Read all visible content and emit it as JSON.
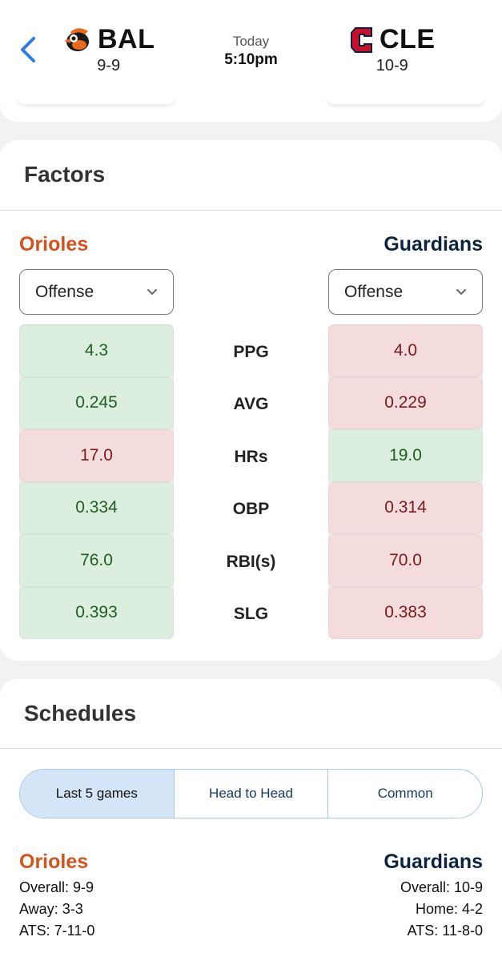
{
  "header": {
    "away": {
      "abbr": "BAL",
      "record": "9-9",
      "logo": "orioles-bird-logo",
      "color": "#d4521c"
    },
    "home": {
      "abbr": "CLE",
      "record": "10-9",
      "logo": "guardians-c-logo",
      "color": "#c8102e"
    },
    "day": "Today",
    "time": "5:10pm"
  },
  "factors": {
    "title": "Factors",
    "left_team": "Orioles",
    "right_team": "Guardians",
    "left_select": "Offense",
    "right_select": "Offense",
    "rows": [
      {
        "label": "PPG",
        "left": "4.3",
        "right": "4.0",
        "left_good": true
      },
      {
        "label": "AVG",
        "left": "0.245",
        "right": "0.229",
        "left_good": true
      },
      {
        "label": "HRs",
        "left": "17.0",
        "right": "19.0",
        "left_good": false
      },
      {
        "label": "OBP",
        "left": "0.334",
        "right": "0.314",
        "left_good": true
      },
      {
        "label": "RBI(s)",
        "left": "76.0",
        "right": "70.0",
        "left_good": true
      },
      {
        "label": "SLG",
        "left": "0.393",
        "right": "0.383",
        "left_good": true
      }
    ]
  },
  "schedules": {
    "title": "Schedules",
    "tabs": [
      "Last 5 games",
      "Head to Head",
      "Common"
    ],
    "active_tab": "Last 5 games",
    "left": {
      "team": "Orioles",
      "overall": "Overall: 9-9",
      "split": "Away: 3-3",
      "ats": "ATS: 7-11-0"
    },
    "right": {
      "team": "Guardians",
      "overall": "Overall: 10-9",
      "split": "Home: 4-2",
      "ats": "ATS: 11-8-0"
    }
  },
  "colors": {
    "good_bg": "#dceedd",
    "bad_bg": "#f4dcdd",
    "accent": "#2f7de1"
  }
}
